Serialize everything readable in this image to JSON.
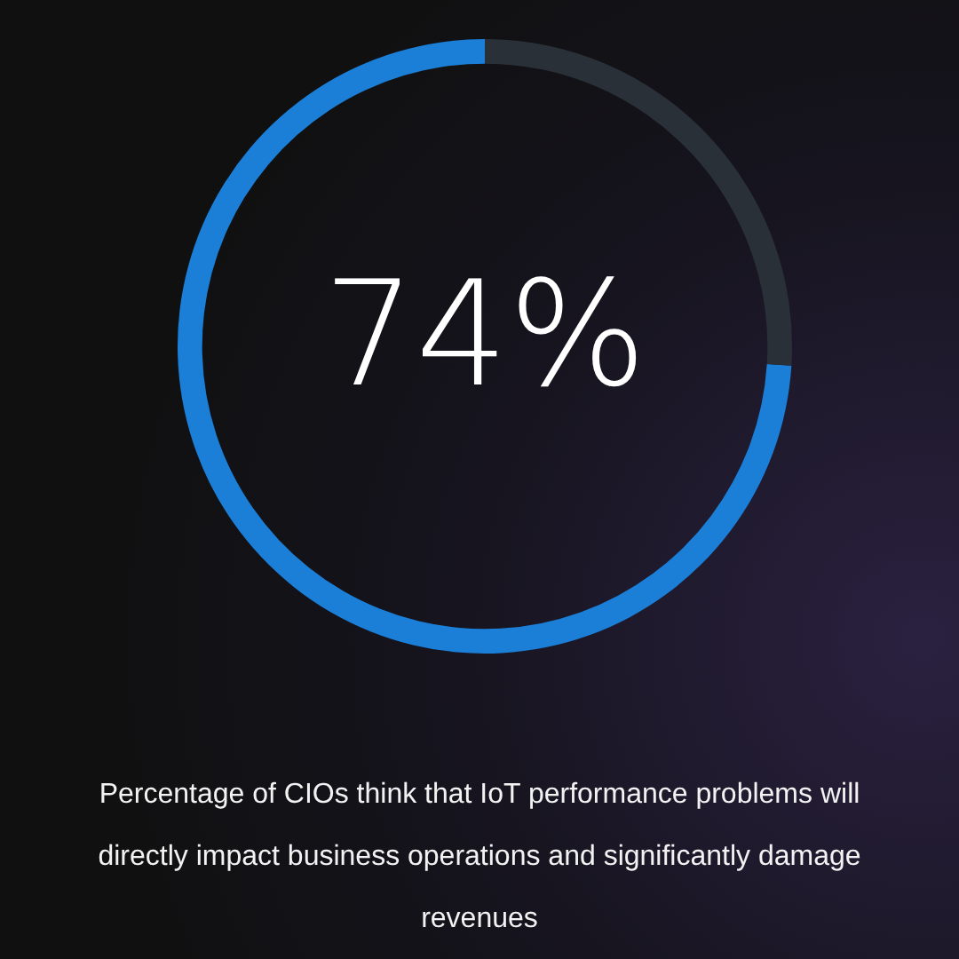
{
  "chart_data": {
    "type": "donut",
    "categories": [
      null,
      null
    ],
    "values": [
      74,
      26
    ],
    "colors": [
      "#1b7fd8",
      "#2a3038"
    ],
    "value_labels": [
      "74%",
      null
    ],
    "legend": false,
    "annotations": [
      "Percentage of CIOs think that IoT performance problems will directly impact business operations and significantly damage revenues"
    ]
  }
}
